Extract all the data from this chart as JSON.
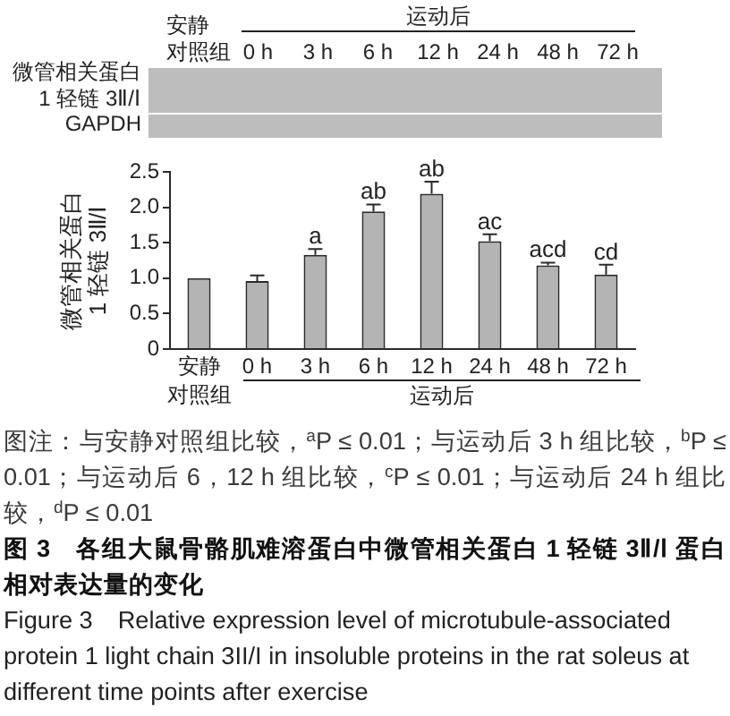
{
  "chart_data": [
    {
      "type": "other",
      "categories": [
        "安静对照组",
        "0 h",
        "3 h",
        "6 h",
        "12 h",
        "24 h",
        "48 h",
        "72 h"
      ],
      "xlabel": "运动后",
      "y_categories": [
        "微管相关蛋白\n1 轻链 3Ⅱ/Ⅰ",
        "GAPDH"
      ]
    },
    {
      "type": "bar",
      "categories": [
        "安静对照组",
        "0 h",
        "3 h",
        "6 h",
        "12 h",
        "24 h",
        "48 h",
        "72 h"
      ],
      "values": [
        1.0,
        0.96,
        1.33,
        1.94,
        2.19,
        1.52,
        1.18,
        1.05
      ],
      "errors": [
        null,
        [
          0.96,
          1.04
        ],
        [
          1.33,
          1.41
        ],
        [
          1.94,
          2.04
        ],
        [
          2.19,
          2.36
        ],
        [
          1.52,
          1.62
        ],
        [
          1.18,
          1.22
        ],
        [
          1.05,
          1.19
        ]
      ],
      "color": "#b4b4b4",
      "ylim": [
        0,
        2.5
      ],
      "yticks": [
        0,
        0.5,
        {
          "value": 1,
          "label": "1.0"
        },
        1.5,
        {
          "value": 2,
          "label": "2.0"
        },
        2.5
      ],
      "ylabel": "微管相关蛋白\n1 轻链 3Ⅱ/Ⅰ",
      "xlabel": "运动后",
      "annotations": [
        {
          "text": "a",
          "x": "3 h",
          "y": 1.41
        },
        {
          "text": "ab",
          "x": "6 h",
          "y": 2.04
        },
        {
          "text": "ab",
          "x": "12 h",
          "y": 2.36
        },
        {
          "text": "ac",
          "x": "24 h",
          "y": 1.62
        },
        {
          "text": "acd",
          "x": "48 h",
          "y": 1.22
        },
        {
          "text": "cd",
          "x": "72 h",
          "y": 1.19
        },
        "图注：与安静对照组比较，$^{a}$P ≤ 0.01；与运动后 3 h 组比较，$^{b}$P ≤ 0.01；与运动后 6，12 h 组比较，$^{c}$P ≤ 0.01；与运动后 24 h 组比较，$^{d}$P ≤ 0.01",
        "图 3　各组大鼠骨骼肌难溶蛋白中微管相关蛋白 1 轻链 3Ⅱ/Ⅰ 蛋白相对表达量的变化",
        "Figure 3　Relative expression level of microtubule-associated protein 1 light chain 3II/I in insoluble proteins in the rat soleus at different time points after exercise"
      ]
    }
  ]
}
